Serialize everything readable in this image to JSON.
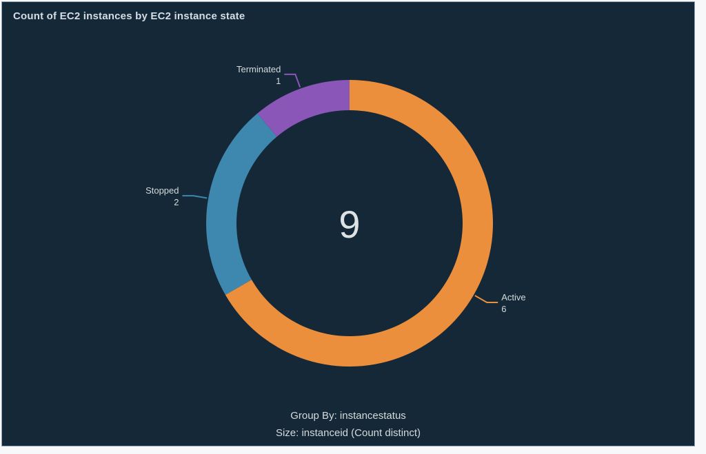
{
  "panel": {
    "title": "Count of EC2 instances by EC2 instance state"
  },
  "chart_data": {
    "type": "pie",
    "variant": "donut",
    "title": "Count of EC2 instances by EC2 instance state",
    "categories": [
      "Active",
      "Stopped",
      "Terminated"
    ],
    "values": [
      6,
      2,
      1
    ],
    "segments": [
      {
        "label": "Active",
        "value": 6,
        "color": "#ec8f3c"
      },
      {
        "label": "Stopped",
        "value": 2,
        "color": "#3e87ae"
      },
      {
        "label": "Terminated",
        "value": 1,
        "color": "#8a56b8"
      }
    ],
    "center_total": "9",
    "start_angle_deg": 0,
    "direction": "clockwise",
    "legend_position": "callout-labels",
    "grid": false
  },
  "footer": {
    "group_by": "Group By: instancestatus",
    "size": "Size: instanceid (Count distinct)"
  },
  "colors": {
    "panel_background": "#142838",
    "panel_border": "#8ea0b5",
    "text": "#d5dbdb",
    "title_text": "#d4dce6",
    "center_total_text": "#dde3e5",
    "active": "#ec8f3c",
    "stopped": "#3e87ae",
    "terminated": "#8a56b8"
  }
}
